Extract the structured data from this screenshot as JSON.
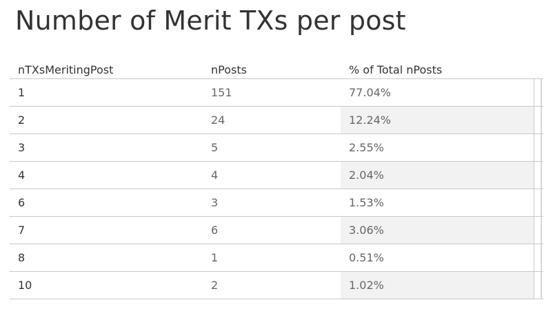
{
  "title": "Number of Merit TXs per post",
  "columns": [
    "nTXsMeritingPost",
    "nPosts",
    "% of Total nPosts"
  ],
  "rows": [
    {
      "ntx": "1",
      "nposts": "151",
      "pct": "77.04%"
    },
    {
      "ntx": "2",
      "nposts": "24",
      "pct": "12.24%"
    },
    {
      "ntx": "3",
      "nposts": "5",
      "pct": "2.55%"
    },
    {
      "ntx": "4",
      "nposts": "4",
      "pct": "2.04%"
    },
    {
      "ntx": "6",
      "nposts": "3",
      "pct": "1.53%"
    },
    {
      "ntx": "7",
      "nposts": "6",
      "pct": "3.06%"
    },
    {
      "ntx": "8",
      "nposts": "1",
      "pct": "0.51%"
    },
    {
      "ntx": "10",
      "nposts": "2",
      "pct": "1.02%"
    }
  ],
  "chart_data": {
    "type": "table",
    "title": "Number of Merit TXs per post",
    "columns": [
      "nTXsMeritingPost",
      "nPosts",
      "% of Total nPosts"
    ],
    "nTXsMeritingPost": [
      1,
      2,
      3,
      4,
      6,
      7,
      8,
      10
    ],
    "nPosts": [
      151,
      24,
      5,
      4,
      3,
      6,
      1,
      2
    ],
    "pct_of_total_nPosts": [
      77.04,
      12.24,
      2.55,
      2.04,
      1.53,
      3.06,
      0.51,
      1.02
    ]
  }
}
